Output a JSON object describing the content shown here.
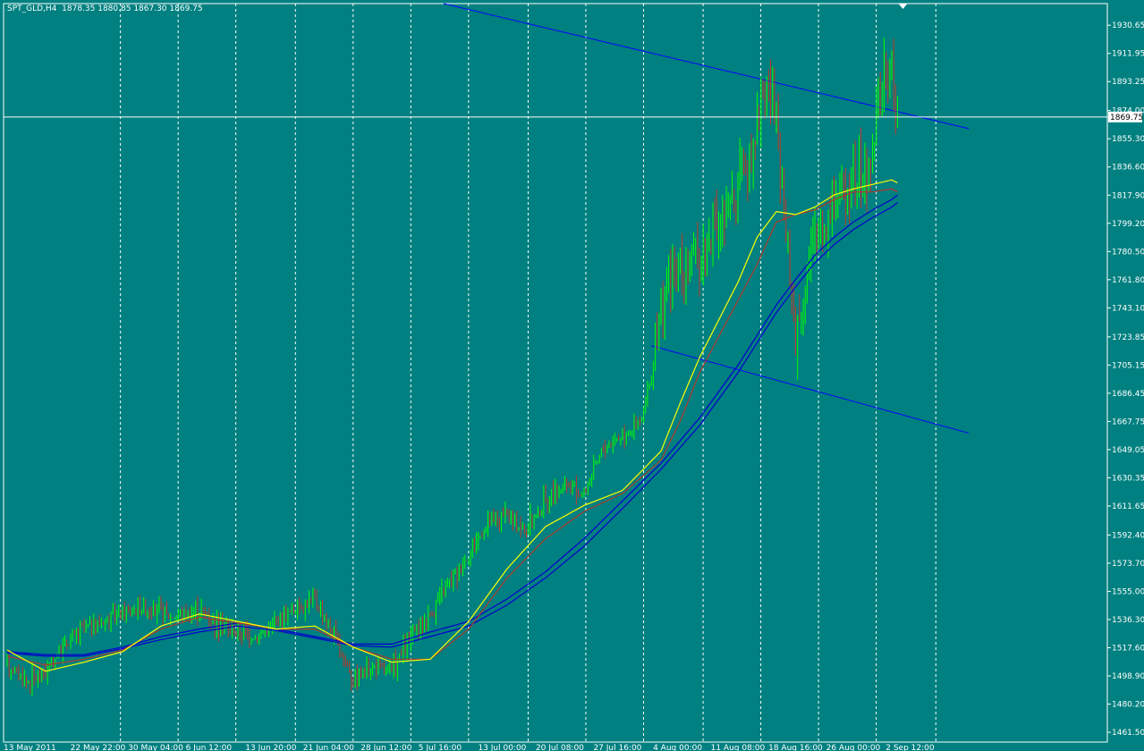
{
  "header": {
    "symbol": "SPT_GLD,H4",
    "ohlc": "1878.35 1880.85 1867.30 1869.75"
  },
  "colors": {
    "background": "#008080",
    "bull_bar": "#00ff00",
    "bear_bar": "#c0392b",
    "ma_fast": "#ffff00",
    "ma_mid": "#b03a2e",
    "ma_slow": "#0000cd",
    "trendline": "#0000ff",
    "grid": "#ffffff"
  },
  "chart_data": {
    "type": "candlestick",
    "grid": "vertical dashed",
    "price_axis": "right",
    "current_price": 1869.75,
    "ylim": [
      1455.0,
      1945.0
    ],
    "y_ticks": [
      1930.65,
      1911.95,
      1893.25,
      1874.0,
      1855.3,
      1836.6,
      1817.9,
      1799.2,
      1780.5,
      1761.8,
      1743.1,
      1723.85,
      1705.15,
      1686.45,
      1667.75,
      1649.05,
      1630.35,
      1611.65,
      1592.4,
      1573.7,
      1555.0,
      1536.3,
      1517.6,
      1498.9,
      1480.2,
      1461.5
    ],
    "y_tick_labels": [
      "1930.65",
      "1911.95",
      "1893.25",
      "1874.00",
      "1855.30",
      "1836.60",
      "1817.90",
      "1799.20",
      "1780.50",
      "1761.80",
      "1743.10",
      "1723.85",
      "1705.15",
      "1686.45",
      "1667.75",
      "1649.05",
      "1630.35",
      "1611.65",
      "1592.40",
      "1573.70",
      "1555.00",
      "1536.30",
      "1517.60",
      "1498.90",
      "1480.20",
      "1461.50"
    ],
    "x_labels": [
      "13 May 2011",
      "22 May 22:00",
      "30 May 04:00",
      "6 Jun 12:00",
      "13 Jun 20:00",
      "21 Jun 04:00",
      "28 Jun 12:00",
      "5 Jul 16:00",
      "13 Jul 00:00",
      "20 Jul 08:00",
      "27 Jul 16:00",
      "4 Aug 00:00",
      "11 Aug 08:00",
      "18 Aug 16:00",
      "26 Aug 00:00",
      "2 Sep 12:00"
    ],
    "x_label_bar_index": [
      0,
      31,
      61,
      91,
      122,
      152,
      182,
      212,
      243,
      273,
      303,
      334,
      364,
      394,
      424,
      455
    ],
    "price_path": [
      [
        0,
        1508
      ],
      [
        10,
        1495
      ],
      [
        20,
        1502
      ],
      [
        30,
        1520
      ],
      [
        40,
        1530
      ],
      [
        55,
        1538
      ],
      [
        70,
        1545
      ],
      [
        85,
        1538
      ],
      [
        100,
        1543
      ],
      [
        115,
        1530
      ],
      [
        130,
        1525
      ],
      [
        145,
        1540
      ],
      [
        160,
        1550
      ],
      [
        170,
        1525
      ],
      [
        180,
        1498
      ],
      [
        190,
        1505
      ],
      [
        200,
        1502
      ],
      [
        210,
        1525
      ],
      [
        220,
        1540
      ],
      [
        230,
        1560
      ],
      [
        240,
        1580
      ],
      [
        250,
        1600
      ],
      [
        260,
        1605
      ],
      [
        270,
        1595
      ],
      [
        280,
        1615
      ],
      [
        290,
        1625
      ],
      [
        300,
        1620
      ],
      [
        310,
        1650
      ],
      [
        320,
        1660
      ],
      [
        330,
        1668
      ],
      [
        336,
        1705
      ],
      [
        342,
        1755
      ],
      [
        350,
        1770
      ],
      [
        360,
        1775
      ],
      [
        365,
        1790
      ],
      [
        372,
        1800
      ],
      [
        378,
        1815
      ],
      [
        385,
        1840
      ],
      [
        392,
        1880
      ],
      [
        396,
        1895
      ],
      [
        400,
        1860
      ],
      [
        405,
        1790
      ],
      [
        410,
        1725
      ],
      [
        415,
        1760
      ],
      [
        420,
        1790
      ],
      [
        425,
        1800
      ],
      [
        430,
        1815
      ],
      [
        436,
        1825
      ],
      [
        442,
        1830
      ],
      [
        448,
        1830
      ],
      [
        452,
        1875
      ],
      [
        456,
        1895
      ],
      [
        460,
        1900
      ],
      [
        463,
        1870
      ]
    ],
    "ma_fast": [
      [
        0,
        1516
      ],
      [
        20,
        1502
      ],
      [
        40,
        1508
      ],
      [
        60,
        1515
      ],
      [
        80,
        1532
      ],
      [
        100,
        1540
      ],
      [
        120,
        1535
      ],
      [
        140,
        1530
      ],
      [
        160,
        1532
      ],
      [
        180,
        1518
      ],
      [
        200,
        1508
      ],
      [
        220,
        1510
      ],
      [
        240,
        1535
      ],
      [
        260,
        1570
      ],
      [
        280,
        1598
      ],
      [
        300,
        1612
      ],
      [
        320,
        1622
      ],
      [
        340,
        1648
      ],
      [
        350,
        1680
      ],
      [
        360,
        1710
      ],
      [
        380,
        1760
      ],
      [
        390,
        1790
      ],
      [
        400,
        1807
      ],
      [
        410,
        1805
      ],
      [
        420,
        1810
      ],
      [
        430,
        1818
      ],
      [
        440,
        1822
      ],
      [
        450,
        1825
      ],
      [
        460,
        1828
      ],
      [
        463,
        1826
      ]
    ],
    "ma_mid": [
      [
        0,
        1512
      ],
      [
        20,
        1506
      ],
      [
        40,
        1510
      ],
      [
        60,
        1516
      ],
      [
        80,
        1530
      ],
      [
        100,
        1538
      ],
      [
        120,
        1534
      ],
      [
        140,
        1530
      ],
      [
        160,
        1530
      ],
      [
        180,
        1518
      ],
      [
        200,
        1510
      ],
      [
        220,
        1510
      ],
      [
        240,
        1530
      ],
      [
        260,
        1564
      ],
      [
        280,
        1590
      ],
      [
        300,
        1608
      ],
      [
        320,
        1620
      ],
      [
        340,
        1642
      ],
      [
        350,
        1668
      ],
      [
        360,
        1700
      ],
      [
        380,
        1748
      ],
      [
        390,
        1772
      ],
      [
        400,
        1800
      ],
      [
        410,
        1805
      ],
      [
        420,
        1808
      ],
      [
        430,
        1815
      ],
      [
        440,
        1820
      ],
      [
        450,
        1820
      ],
      [
        460,
        1822
      ],
      [
        463,
        1820
      ]
    ],
    "ma_slow_a": [
      [
        0,
        1515
      ],
      [
        20,
        1513
      ],
      [
        40,
        1513
      ],
      [
        60,
        1518
      ],
      [
        80,
        1525
      ],
      [
        100,
        1530
      ],
      [
        120,
        1534
      ],
      [
        140,
        1530
      ],
      [
        160,
        1525
      ],
      [
        180,
        1520
      ],
      [
        200,
        1520
      ],
      [
        220,
        1528
      ],
      [
        240,
        1535
      ],
      [
        260,
        1550
      ],
      [
        280,
        1568
      ],
      [
        300,
        1590
      ],
      [
        320,
        1615
      ],
      [
        340,
        1640
      ],
      [
        360,
        1670
      ],
      [
        380,
        1705
      ],
      [
        390,
        1725
      ],
      [
        400,
        1745
      ],
      [
        410,
        1762
      ],
      [
        420,
        1778
      ],
      [
        430,
        1790
      ],
      [
        440,
        1800
      ],
      [
        450,
        1808
      ],
      [
        460,
        1815
      ],
      [
        463,
        1818
      ]
    ],
    "ma_slow_b": [
      [
        0,
        1514
      ],
      [
        20,
        1512
      ],
      [
        40,
        1512
      ],
      [
        60,
        1517
      ],
      [
        80,
        1523
      ],
      [
        100,
        1528
      ],
      [
        120,
        1532
      ],
      [
        140,
        1529
      ],
      [
        160,
        1524
      ],
      [
        180,
        1519
      ],
      [
        200,
        1518
      ],
      [
        220,
        1525
      ],
      [
        240,
        1532
      ],
      [
        260,
        1546
      ],
      [
        280,
        1564
      ],
      [
        300,
        1585
      ],
      [
        320,
        1610
      ],
      [
        340,
        1636
      ],
      [
        360,
        1665
      ],
      [
        380,
        1700
      ],
      [
        390,
        1720
      ],
      [
        400,
        1740
      ],
      [
        410,
        1757
      ],
      [
        420,
        1773
      ],
      [
        430,
        1785
      ],
      [
        440,
        1795
      ],
      [
        450,
        1803
      ],
      [
        460,
        1810
      ],
      [
        463,
        1813
      ]
    ],
    "trendlines": [
      {
        "from": [
          227,
          1945
        ],
        "to": [
          500,
          1862
        ]
      },
      {
        "from": [
          335,
          1718
        ],
        "to": [
          500,
          1660
        ]
      }
    ]
  }
}
